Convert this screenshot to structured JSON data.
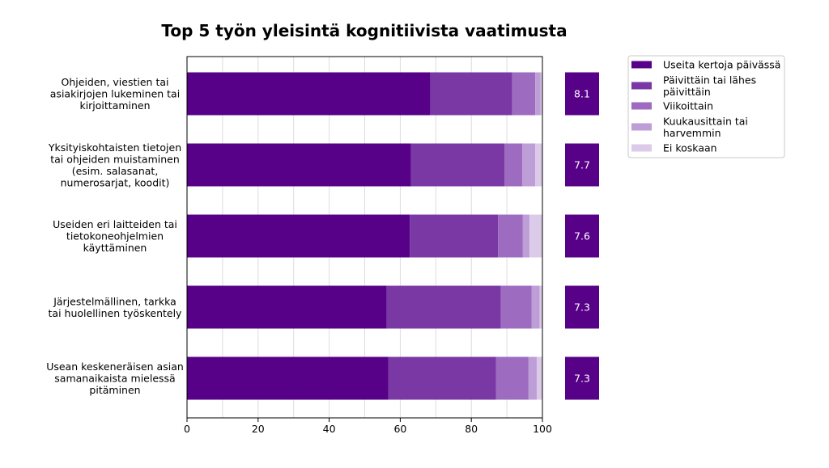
{
  "chart_data": {
    "type": "bar",
    "orientation": "horizontal",
    "stacked": true,
    "title": "Top 5 työn yleisintä kognitiivista vaatimusta",
    "xlim": [
      0,
      100
    ],
    "xticks": [
      "0",
      "20",
      "40",
      "60",
      "80",
      "100"
    ],
    "grid": "vertical",
    "legend_position": "right",
    "categories": [
      [
        "Ohjeiden, viestien tai",
        "asiakirjojen lukeminen tai",
        "kirjoittaminen"
      ],
      [
        "Yksityiskohtaisten tietojen",
        "tai ohjeiden muistaminen",
        "(esim. salasanat,",
        "numerosarjat, koodit)"
      ],
      [
        "Useiden eri laitteiden tai",
        "tietokoneohjelmien",
        "käyttäminen"
      ],
      [
        "Järjestelmällinen, tarkka",
        "tai huolellinen työskentely"
      ],
      [
        "Usean keskeneräisen asian",
        "samanaikaista mielessä",
        "pitäminen"
      ]
    ],
    "series": [
      {
        "name": [
          "Useita kertoja päivässä"
        ],
        "color": "#560187",
        "values": [
          68.5,
          63,
          62.7,
          56.2,
          56.6
        ]
      },
      {
        "name": [
          "Päivittäin tai lähes",
          "päivittäin"
        ],
        "color": "#7a38a5",
        "values": [
          23,
          26.3,
          24.8,
          32.1,
          30.3
        ]
      },
      {
        "name": [
          "Viikoittain"
        ],
        "color": "#9d6bbf",
        "values": [
          6.5,
          5,
          7,
          8.7,
          9.2
        ]
      },
      {
        "name": [
          "Kuukausittain tai",
          "harvemmin"
        ],
        "color": "#bd9ed7",
        "values": [
          1.5,
          3.7,
          1.9,
          2.2,
          2.3
        ]
      },
      {
        "name": [
          "Ei koskaan"
        ],
        "color": "#dccbe8",
        "values": [
          0.5,
          2,
          3.6,
          0.8,
          1.6
        ]
      }
    ],
    "scores": [
      "8.1",
      "7.7",
      "7.6",
      "7.3",
      "7.3"
    ],
    "score_box_color": "#560187"
  }
}
